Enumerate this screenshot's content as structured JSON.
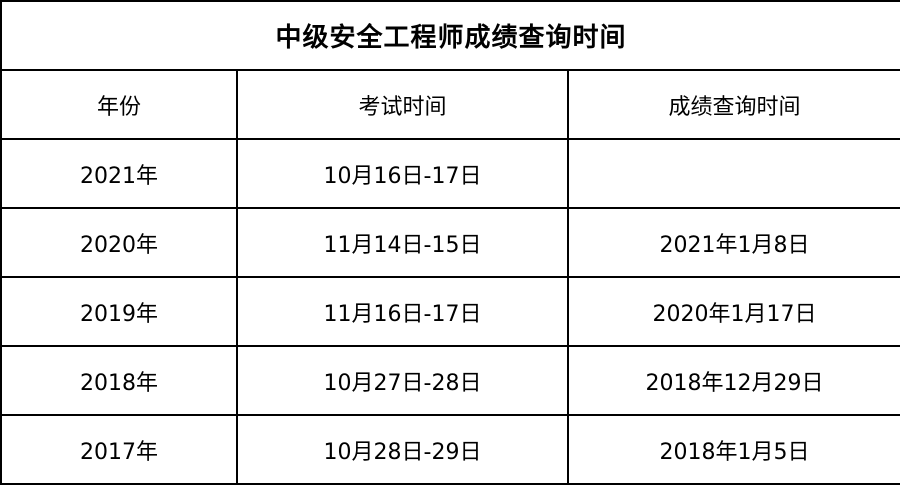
{
  "title": "中级安全工程师成绩查询时间",
  "headers": [
    "年份",
    "考试时间",
    "成绩查询时间"
  ],
  "rows": [
    [
      "2021年",
      "10月16日-17日",
      ""
    ],
    [
      "2020年",
      "11月14日-15日",
      "2021年1月8日"
    ],
    [
      "2019年",
      "11月16日-17日",
      "2020年1月17日"
    ],
    [
      "2018年",
      "10月27日-28日",
      "2018年12月29日"
    ],
    [
      "2017年",
      "10月28日-29日",
      "2018年1月5日"
    ]
  ]
}
